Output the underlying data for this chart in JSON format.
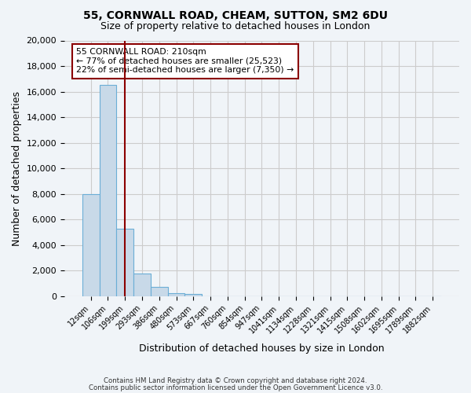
{
  "title": "55, CORNWALL ROAD, CHEAM, SUTTON, SM2 6DU",
  "subtitle": "Size of property relative to detached houses in London",
  "xlabel": "Distribution of detached houses by size in London",
  "ylabel": "Number of detached properties",
  "bin_labels": [
    "12sqm",
    "106sqm",
    "199sqm",
    "293sqm",
    "386sqm",
    "480sqm",
    "573sqm",
    "667sqm",
    "760sqm",
    "854sqm",
    "947sqm",
    "1041sqm",
    "1134sqm",
    "1228sqm",
    "1321sqm",
    "1415sqm",
    "1508sqm",
    "1602sqm",
    "1695sqm",
    "1789sqm",
    "1882sqm"
  ],
  "bar_values": [
    8000,
    16500,
    5300,
    1800,
    750,
    250,
    150,
    0,
    0,
    0,
    0,
    0,
    0,
    0,
    0,
    0,
    0,
    0,
    0,
    0,
    0
  ],
  "bar_color": "#c8d9e8",
  "bar_edge_color": "#6baed6",
  "property_line_x": 2.0,
  "property_line_color": "#8b0000",
  "annotation_text": "55 CORNWALL ROAD: 210sqm\n← 77% of detached houses are smaller (25,523)\n22% of semi-detached houses are larger (7,350) →",
  "annotation_box_color": "#ffffff",
  "annotation_box_edge_color": "#8b0000",
  "ylim": [
    0,
    20000
  ],
  "yticks": [
    0,
    2000,
    4000,
    6000,
    8000,
    10000,
    12000,
    14000,
    16000,
    18000,
    20000
  ],
  "grid_color": "#cccccc",
  "background_color": "#f0f4f8",
  "footer_line1": "Contains HM Land Registry data © Crown copyright and database right 2024.",
  "footer_line2": "Contains public sector information licensed under the Open Government Licence v3.0."
}
